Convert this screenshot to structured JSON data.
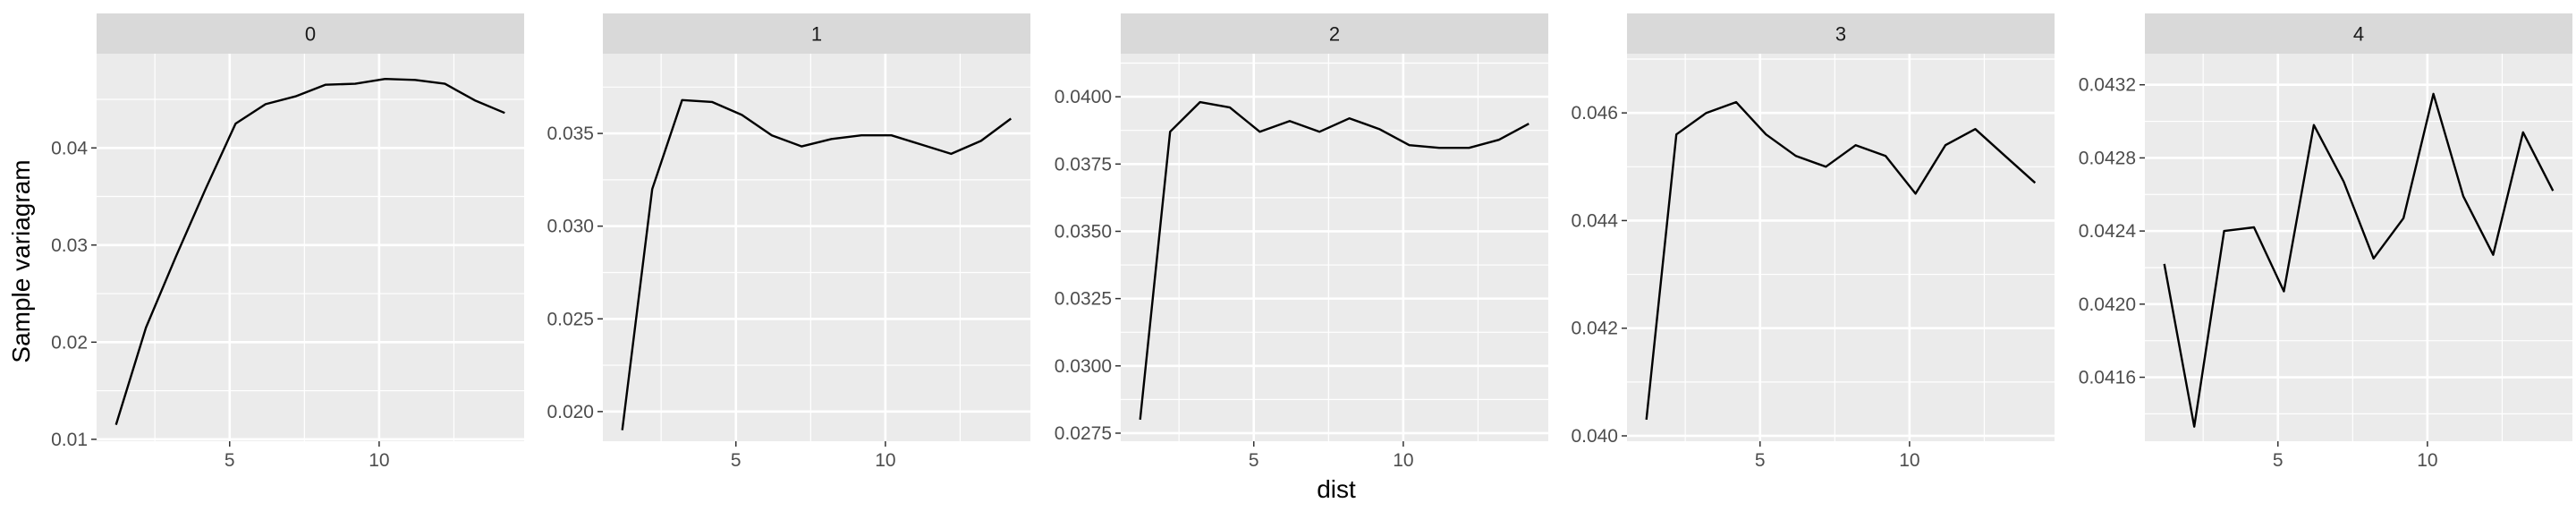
{
  "chart_data": {
    "type": "line",
    "xlabel": "dist",
    "ylabel": "Sample variagram",
    "grid": true,
    "facet_strip_color": "#d9d9d9",
    "panel_background": "#ebebeb",
    "line_color": "#000000",
    "x": [
      1.2,
      2.2,
      3.2,
      4.2,
      5.2,
      6.2,
      7.2,
      8.2,
      9.2,
      10.2,
      11.2,
      12.2,
      13.2,
      14.2
    ],
    "xlim": [
      0.55,
      14.85
    ],
    "xticks": [
      5,
      10
    ],
    "panels": [
      {
        "facet": "0",
        "ylim": [
          0.0098,
          0.0497
        ],
        "yticks": [
          0.01,
          0.02,
          0.03,
          0.04
        ],
        "ytick_labels": [
          "0.01",
          "0.02",
          "0.03",
          "0.04"
        ],
        "values": [
          0.0115,
          0.0215,
          0.0288,
          0.0358,
          0.0425,
          0.0445,
          0.0453,
          0.0465,
          0.0466,
          0.0471,
          0.047,
          0.0466,
          0.0449,
          0.0436
        ]
      },
      {
        "facet": "1",
        "ylim": [
          0.0184,
          0.0393
        ],
        "yticks": [
          0.02,
          0.025,
          0.03,
          0.035
        ],
        "ytick_labels": [
          "0.020",
          "0.025",
          "0.030",
          "0.035"
        ],
        "values": [
          0.019,
          0.032,
          0.0368,
          0.0367,
          0.036,
          0.0349,
          0.0343,
          0.0347,
          0.0349,
          0.0349,
          0.0344,
          0.0339,
          0.0346,
          0.0358
        ]
      },
      {
        "facet": "2",
        "ylim": [
          0.0272,
          0.0416
        ],
        "yticks": [
          0.0275,
          0.03,
          0.0325,
          0.035,
          0.0375,
          0.04
        ],
        "ytick_labels": [
          "0.0275",
          "0.0300",
          "0.0325",
          "0.0350",
          "0.0375",
          "0.0400"
        ],
        "values": [
          0.028,
          0.0387,
          0.0398,
          0.0396,
          0.0387,
          0.0391,
          0.0387,
          0.0392,
          0.0388,
          0.0382,
          0.0381,
          0.0381,
          0.0384,
          0.039
        ]
      },
      {
        "facet": "3",
        "ylim": [
          0.0399,
          0.0471
        ],
        "yticks": [
          0.04,
          0.042,
          0.044,
          0.046
        ],
        "ytick_labels": [
          "0.040",
          "0.042",
          "0.044",
          "0.046"
        ],
        "values": [
          0.0403,
          0.0456,
          0.046,
          0.0462,
          0.0456,
          0.0452,
          0.045,
          0.0454,
          0.0452,
          0.0445,
          0.0454,
          0.0457,
          0.0452,
          0.0447
        ]
      },
      {
        "facet": "4",
        "ylim": [
          0.04125,
          0.04337
        ],
        "yticks": [
          0.0416,
          0.042,
          0.0424,
          0.0428,
          0.0432
        ],
        "ytick_labels": [
          "0.0416",
          "0.0420",
          "0.0424",
          "0.0428",
          "0.0432"
        ],
        "values": [
          0.04222,
          0.04133,
          0.0424,
          0.04242,
          0.04207,
          0.04298,
          0.04267,
          0.04225,
          0.04247,
          0.04315,
          0.04259,
          0.04227,
          0.04294,
          0.04262
        ]
      }
    ]
  }
}
